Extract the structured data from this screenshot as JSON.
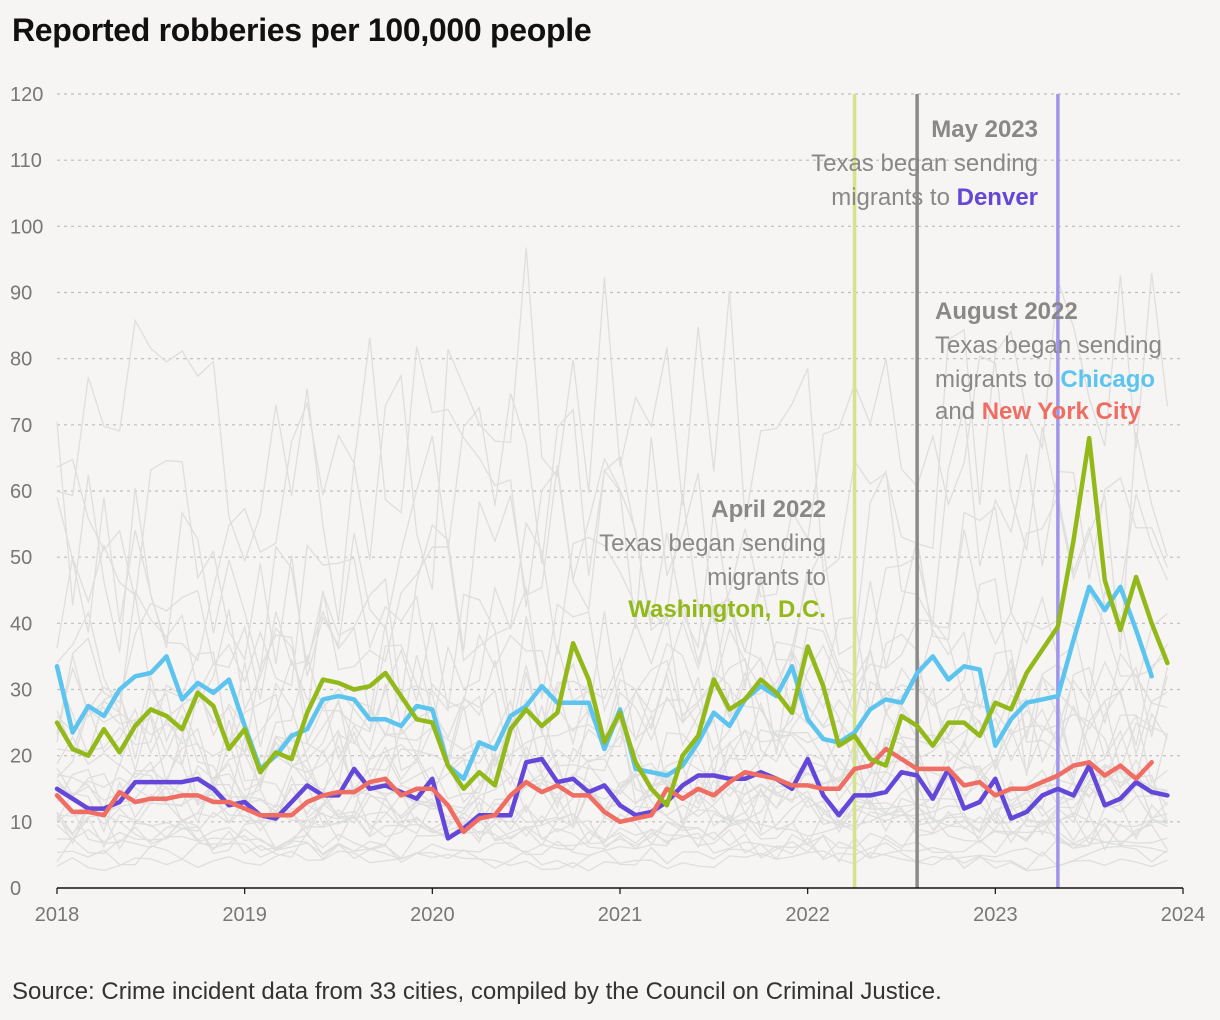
{
  "title": "Reported robberies per 100,000 people",
  "source": "Source: Crime incident data from 33 cities, compiled by the Council on Criminal Justice.",
  "chart_data": {
    "type": "line",
    "title": "Reported robberies per 100,000 people",
    "x_ticks": [
      "2018",
      "2019",
      "2020",
      "2021",
      "2022",
      "2023",
      "2024"
    ],
    "y_ticks": [
      0,
      10,
      20,
      30,
      40,
      50,
      60,
      70,
      80,
      90,
      100,
      110,
      120
    ],
    "xlim": [
      2018.0,
      2024.0
    ],
    "ylim": [
      0,
      120
    ],
    "grid": true,
    "colors": {
      "background_city": "#dcdcdc",
      "dc": "#93b81a",
      "chicago": "#5cc4ef",
      "nyc": "#ef6d62",
      "denver": "#6347d9",
      "annotation": "#888888"
    },
    "series": [
      {
        "name": "Washington, D.C.",
        "color": "#93b81a",
        "x_start": 2018.0,
        "step_months": 1,
        "values": [
          25,
          21,
          20,
          24,
          20.5,
          24.5,
          27,
          26,
          24,
          29.5,
          27.5,
          21,
          24,
          17.5,
          20.5,
          19.5,
          26.5,
          31.5,
          31,
          30,
          30.5,
          32.5,
          29,
          25.5,
          25,
          18.5,
          15,
          17.5,
          15.5,
          24,
          27,
          24.5,
          26.5,
          37,
          31.5,
          22,
          26.5,
          19,
          15,
          12.5,
          20,
          23,
          31.5,
          27,
          28.5,
          31.5,
          29.5,
          26.5,
          36.5,
          30.5,
          21.5,
          23,
          19.5,
          18.5,
          26,
          24.5,
          21.5,
          25,
          25,
          23,
          28,
          27,
          32.5,
          36,
          39.5,
          52.5,
          68,
          46.5,
          39,
          47,
          40,
          34
        ]
      },
      {
        "name": "Chicago",
        "color": "#5cc4ef",
        "x_start": 2018.0,
        "step_months": 1,
        "values": [
          33.5,
          23.5,
          27.5,
          26,
          30,
          32,
          32.5,
          35,
          28.5,
          31,
          29.5,
          31.5,
          24.5,
          18,
          20,
          23,
          24,
          28.5,
          29,
          28.5,
          25.5,
          25.5,
          24.5,
          27.5,
          27,
          18.5,
          16.5,
          22,
          21,
          26,
          27.5,
          30.5,
          28,
          28,
          28,
          21,
          27,
          18,
          17.5,
          17,
          18.5,
          22,
          26.5,
          24.5,
          28.5,
          30.5,
          29,
          33.5,
          25.5,
          22.5,
          22,
          23.5,
          27,
          28.5,
          28,
          32.5,
          35,
          31.5,
          33.5,
          33,
          21.5,
          25.5,
          28,
          28.5,
          29,
          37.5,
          45.5,
          42,
          45.5,
          39,
          32
        ]
      },
      {
        "name": "New York City",
        "color": "#ef6d62",
        "x_start": 2018.0,
        "step_months": 1,
        "values": [
          14,
          11.5,
          11.5,
          11,
          14.5,
          13,
          13.5,
          13.5,
          14,
          14,
          13,
          13,
          12,
          11,
          11,
          11,
          13,
          14,
          14.5,
          14.5,
          16,
          16.5,
          14,
          15,
          15,
          12.5,
          8.5,
          10.5,
          11,
          14,
          16,
          14.5,
          15.5,
          14,
          14,
          11.5,
          10,
          10.5,
          11,
          15,
          13.5,
          15,
          14,
          16,
          17.5,
          17,
          16.5,
          15.5,
          15.5,
          15,
          15,
          18,
          18.5,
          21,
          19.5,
          18,
          18,
          18,
          15.5,
          16,
          14,
          15,
          15,
          16,
          17,
          18.5,
          19,
          17,
          18.5,
          16.5,
          19
        ]
      },
      {
        "name": "Denver",
        "color": "#6347d9",
        "x_start": 2018.0,
        "step_months": 1,
        "values": [
          15,
          13.5,
          12,
          12,
          13,
          16,
          16,
          16,
          16,
          16.5,
          15,
          12.5,
          13,
          11,
          10.5,
          13,
          15.5,
          14,
          14,
          18,
          15,
          15.5,
          14.5,
          13.5,
          16.5,
          7.5,
          9,
          11,
          11,
          11,
          19,
          19.5,
          16,
          16.5,
          14.5,
          15.5,
          12.5,
          11,
          11.5,
          13,
          15.5,
          17,
          17,
          16.5,
          16.5,
          17.5,
          16.5,
          15,
          19.5,
          14,
          11,
          14,
          14,
          14.5,
          17.5,
          17,
          13.5,
          18,
          12,
          13,
          16.5,
          10.5,
          11.5,
          14,
          15,
          14,
          18.5,
          12.5,
          13.5,
          16,
          14.5,
          14
        ]
      }
    ],
    "events": [
      {
        "x": 2022.25,
        "color": "#d4e48a",
        "title": "April 2022",
        "text": [
          "Texas began sending",
          "migrants to"
        ],
        "cities": [
          "Washington, D.C."
        ]
      },
      {
        "x": 2022.5833,
        "color": "#8a8a8a",
        "title": "August 2022",
        "text": [
          "Texas began sending",
          "migrants to",
          "and"
        ],
        "cities": [
          "Chicago",
          "New York City"
        ]
      },
      {
        "x": 2023.3333,
        "color": "#9f95ec",
        "title": "May 2023",
        "text": [
          "Texas began sending",
          "migrants to"
        ],
        "cities": [
          "Denver"
        ]
      }
    ]
  }
}
